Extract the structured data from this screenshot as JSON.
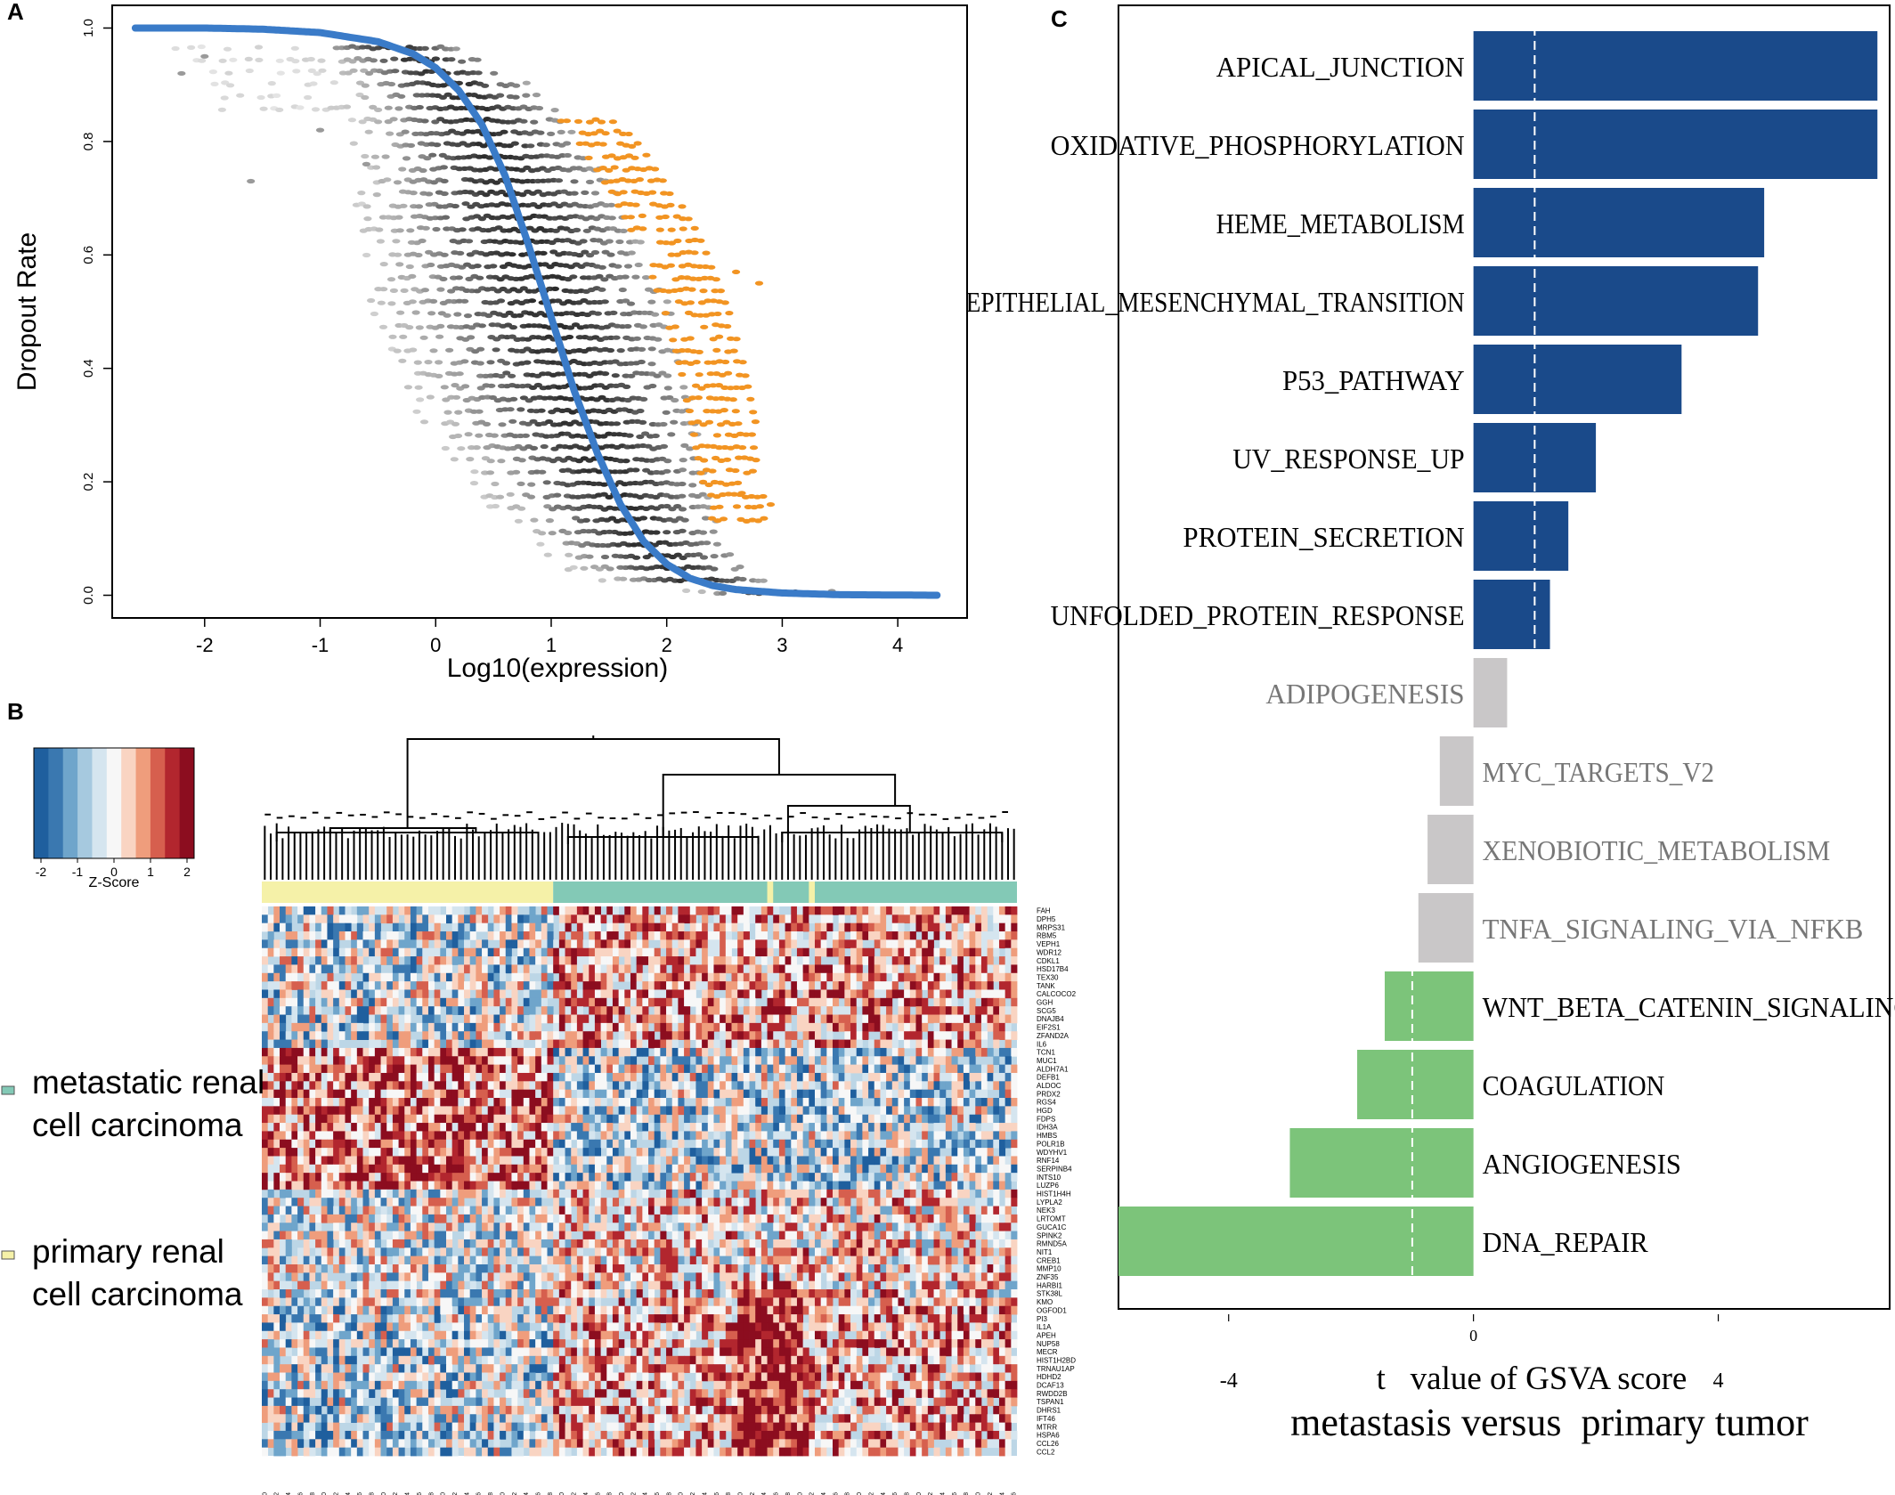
{
  "panel_labels": {
    "a": "A",
    "b": "B",
    "c": "C"
  },
  "chart_data": [
    {
      "panel": "A",
      "type": "scatter",
      "xlabel": "Log10(expression)",
      "ylabel": "Dropout Rate",
      "xlim": [
        -2.8,
        4.6
      ],
      "ylim": [
        -0.04,
        1.04
      ],
      "xticks": [
        -2,
        -1,
        0,
        1,
        2,
        3,
        4
      ],
      "yticks": [
        0.0,
        0.2,
        0.4,
        0.6,
        0.8,
        1.0
      ],
      "xtick_labels": [
        "-2",
        "-1",
        "0",
        "1",
        "2",
        "3",
        "4"
      ],
      "ytick_labels": [
        "0.0",
        "0.2",
        "0.4",
        "0.6",
        "0.8",
        "1.0"
      ],
      "fit_curve": {
        "color": "#3a7bc8",
        "x": [
          -2.6,
          -2.0,
          -1.5,
          -1.0,
          -0.5,
          -0.2,
          0.0,
          0.2,
          0.4,
          0.6,
          0.8,
          1.0,
          1.2,
          1.4,
          1.6,
          1.8,
          2.0,
          2.2,
          2.4,
          2.6,
          3.0,
          3.5,
          4.35
        ],
        "y": [
          1.0,
          1.0,
          0.998,
          0.992,
          0.976,
          0.955,
          0.93,
          0.89,
          0.83,
          0.74,
          0.62,
          0.49,
          0.36,
          0.25,
          0.16,
          0.095,
          0.055,
          0.03,
          0.017,
          0.01,
          0.004,
          0.001,
          0.0
        ]
      },
      "point_colors": {
        "bulk": "#3a3a3a",
        "highlight": "#f29422"
      },
      "outliers": {
        "x": [
          -2.2,
          -1.6,
          -1.0,
          -0.6,
          -2.0,
          2.6,
          2.8,
          2.9,
          2.65
        ],
        "y": [
          0.92,
          0.73,
          0.82,
          0.76,
          0.95,
          0.57,
          0.55,
          0.16,
          0.18
        ]
      }
    },
    {
      "panel": "B",
      "type": "heatmap",
      "legend_title": "Z-Score",
      "legend_ticks": [
        "-2",
        "-1",
        "0",
        "1",
        "2"
      ],
      "palette": [
        "#1f5f9e",
        "#3a78b0",
        "#6fa5cb",
        "#a6c9df",
        "#d5e5ef",
        "#f7f7f7",
        "#f9d4c2",
        "#ef9d7c",
        "#d65f4e",
        "#b2262e",
        "#8c0d1f"
      ],
      "group_colors": {
        "metastatic": "#83c9b6",
        "primary": "#f5f1a8"
      },
      "group_legend": [
        {
          "label_line1": "metastatic renal",
          "label_line2": "cell carcinoma",
          "color": "#83c9b6"
        },
        {
          "label_line1": "primary renal",
          "label_line2": "cell carcinoma",
          "color": "#f5f1a8"
        }
      ],
      "columns_primary": 49,
      "columns_metastatic": 78,
      "genes": [
        "FAH",
        "DPH5",
        "MRPS31",
        "RBM5",
        "VEPH1",
        "WDR12",
        "CDKL1",
        "HSD17B4",
        "TEX30",
        "TANK",
        "CALCOCO2",
        "GGH",
        "SCG5",
        "DNAJB4",
        "EIF2S1",
        "ZFAND2A",
        "IL6",
        "TCN1",
        "MUC1",
        "ALDH7A1",
        "DEFB1",
        "ALDOC",
        "PRDX2",
        "RGS4",
        "HGD",
        "FDPS",
        "IDH3A",
        "HMBS",
        "POLR1B",
        "WDYHV1",
        "RNF14",
        "SERPINB4",
        "INTS10",
        "LUZP6",
        "HIST1H4H",
        "LYPLA2",
        "NEK3",
        "LRTOMT",
        "GUCA1C",
        "SPINK2",
        "RMND5A",
        "NIT1",
        "CREB1",
        "MMP10",
        "ZNF35",
        "HARBI1",
        "STK38L",
        "KMO",
        "OGFOD1",
        "PI3",
        "IL1A",
        "APEH",
        "NUP58",
        "MECR",
        "HIST1H2BD",
        "TRNAU1AP",
        "HDHD2",
        "DCAF13",
        "RWDD2B",
        "TSPAN1",
        "DHRS1",
        "IFT46",
        "MTRR",
        "HSPA6",
        "CCL26",
        "CCL2"
      ],
      "sample_id_prefix": "GSM18872"
    },
    {
      "panel": "C",
      "type": "bar",
      "orientation": "horizontal",
      "xlabel": "t   value of GSVA score",
      "subtitle": "metastasis versus  primary tumor",
      "xlim": [
        -5.8,
        6.8
      ],
      "xticks": [
        -4,
        0,
        4
      ],
      "xtick_labels": [
        "-4",
        "0",
        "4"
      ],
      "colors": {
        "up": "#1a4a8a",
        "ns": "#c9c7c8",
        "down": "#7cc47a"
      },
      "dashed_line_color": "#ffffff",
      "categories": [
        "APICAL_JUNCTION",
        "OXIDATIVE_PHOSPHORYLATION",
        "HEME_METABOLISM",
        "EPITHELIAL_MESENCHYMAL_TRANSITION",
        "P53_PATHWAY",
        "UV_RESPONSE_UP",
        "PROTEIN_SECRETION",
        "UNFOLDED_PROTEIN_RESPONSE",
        "ADIPOGENESIS",
        "MYC_TARGETS_V2",
        "XENOBIOTIC_METABOLISM",
        "TNFA_SIGNALING_VIA_NFKB",
        "WNT_BETA_CATENIN_SIGNALING",
        "COAGULATION",
        "ANGIOGENESIS",
        "DNA_REPAIR"
      ],
      "values": [
        6.6,
        6.6,
        4.75,
        4.65,
        3.4,
        2.0,
        1.55,
        1.25,
        0.55,
        -0.55,
        -0.75,
        -0.9,
        -1.45,
        -1.9,
        -3.0,
        -5.8
      ],
      "groups": [
        "up",
        "up",
        "up",
        "up",
        "up",
        "up",
        "up",
        "up",
        "ns",
        "ns",
        "ns",
        "ns",
        "down",
        "down",
        "down",
        "down"
      ],
      "thresholds": [
        1.0,
        -1.0
      ]
    }
  ]
}
